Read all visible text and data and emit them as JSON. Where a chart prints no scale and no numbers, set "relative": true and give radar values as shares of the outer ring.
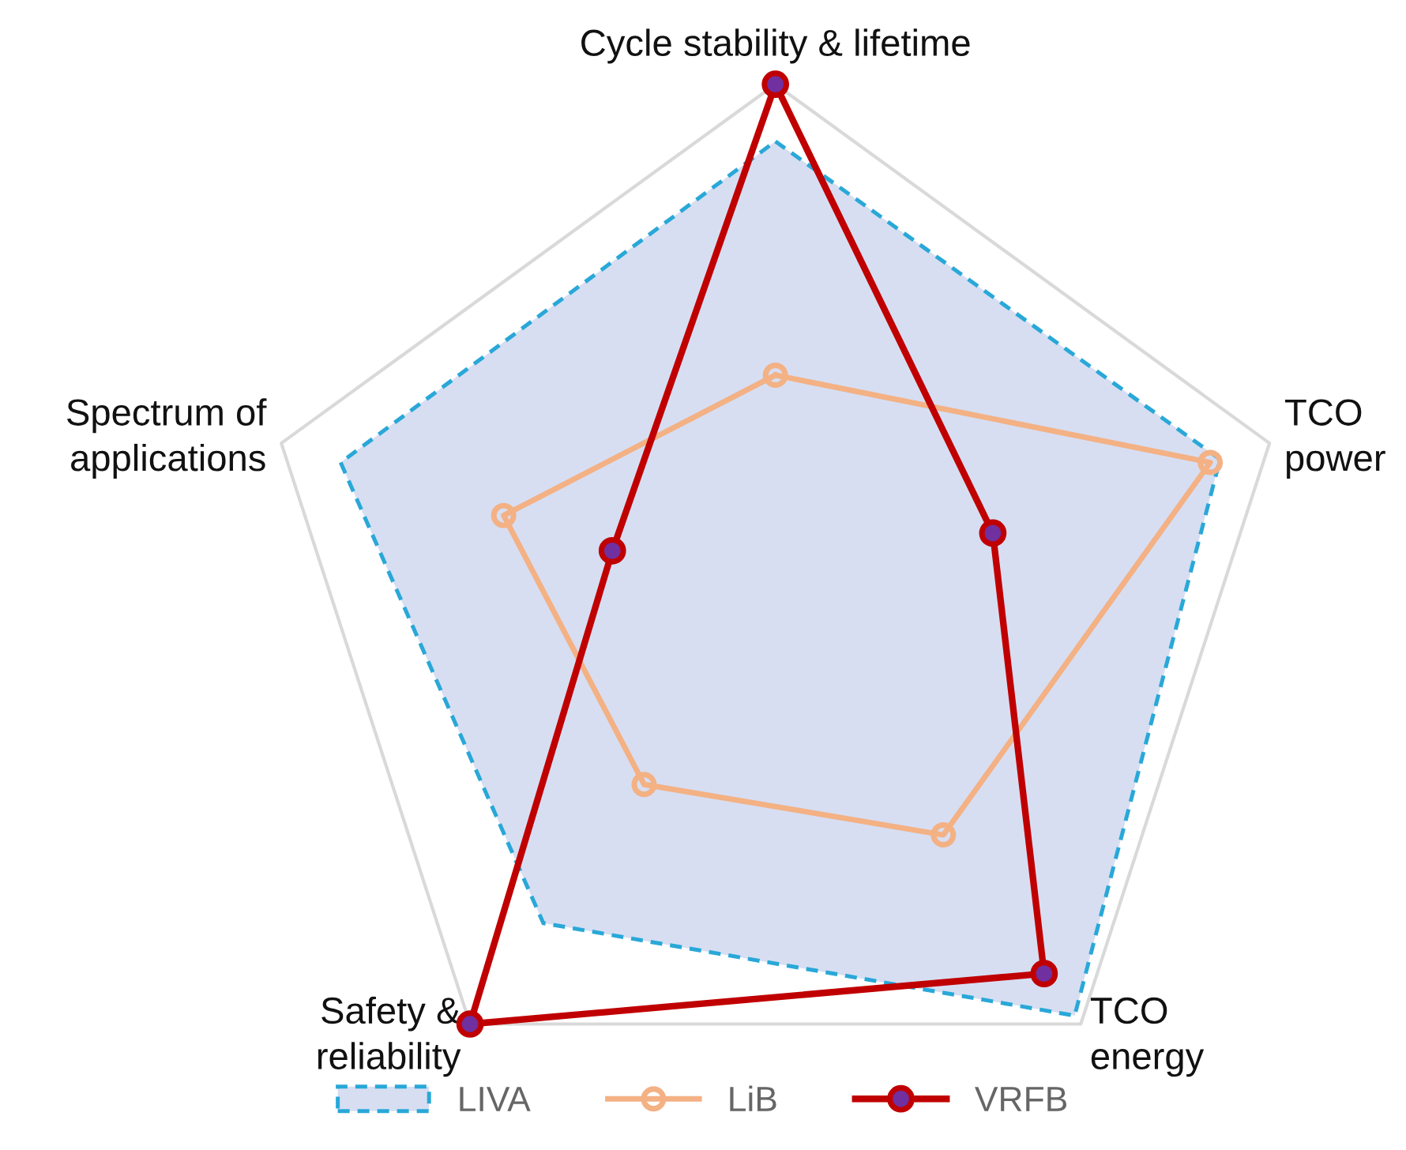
{
  "chart_data": {
    "type": "radar",
    "relative": true,
    "grid": true,
    "legend": "bottom",
    "categories": [
      "Cycle stability & lifetime",
      "TCO\npower",
      "TCO\nenergy",
      "Safety &\nreliability",
      "Spectrum of\napplications"
    ],
    "series": [
      {
        "name": "LIVA",
        "color": "#29a8d8",
        "line_style": "dashed",
        "marker": "none",
        "values": [
          0.89,
          0.9,
          0.98,
          0.76,
          0.88
        ]
      },
      {
        "name": "LiB",
        "color": "#f3b184",
        "line_style": "solid",
        "marker": "circle",
        "values": [
          0.44,
          0.88,
          0.55,
          0.43,
          0.55
        ]
      },
      {
        "name": "VRFB",
        "color": "#c00000",
        "line_style": "solid",
        "marker": "circle",
        "values": [
          1.0,
          0.44,
          0.88,
          1.0,
          0.33
        ]
      }
    ]
  }
}
